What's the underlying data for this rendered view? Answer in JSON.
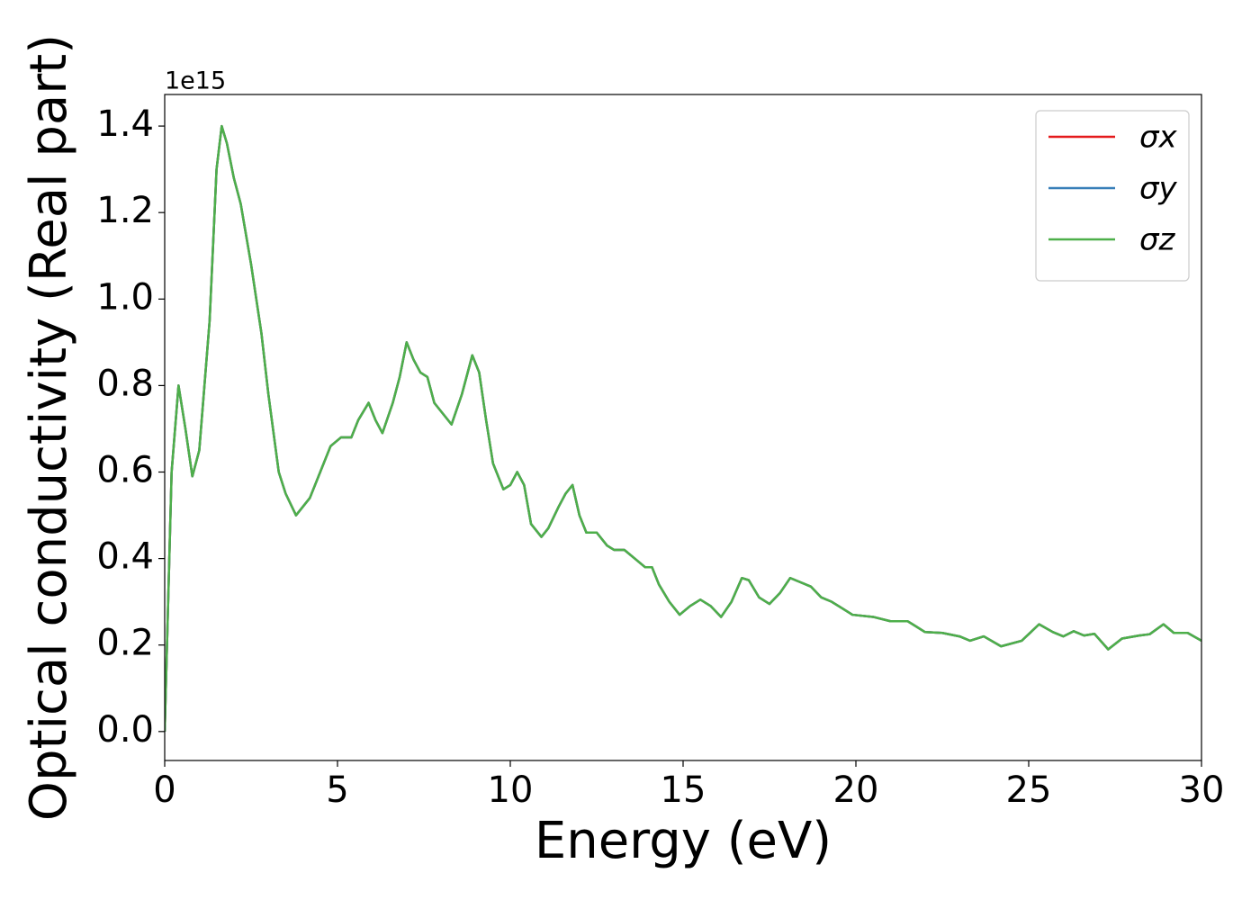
{
  "chart_data": {
    "type": "line",
    "xlabel": "Energy (eV)",
    "ylabel": "Optical conductivity (Real part)",
    "y_offset_label": "1e15",
    "x": [
      0,
      0.1,
      0.2,
      0.4,
      0.6,
      0.8,
      1.0,
      1.3,
      1.5,
      1.65,
      1.8,
      2.0,
      2.2,
      2.5,
      2.8,
      3.0,
      3.3,
      3.5,
      3.8,
      4.2,
      4.5,
      4.8,
      5.1,
      5.4,
      5.6,
      5.9,
      6.1,
      6.3,
      6.6,
      6.8,
      7.0,
      7.2,
      7.4,
      7.6,
      7.8,
      8.0,
      8.3,
      8.6,
      8.9,
      9.1,
      9.3,
      9.5,
      9.8,
      10.0,
      10.2,
      10.4,
      10.6,
      10.9,
      11.1,
      11.4,
      11.6,
      11.8,
      12.0,
      12.2,
      12.5,
      12.8,
      13.0,
      13.3,
      13.6,
      13.9,
      14.1,
      14.3,
      14.6,
      14.9,
      15.2,
      15.5,
      15.8,
      16.1,
      16.4,
      16.7,
      16.9,
      17.2,
      17.5,
      17.8,
      18.1,
      18.4,
      18.7,
      19.0,
      19.3,
      19.6,
      19.9,
      20.5,
      21.0,
      21.5,
      22.0,
      22.5,
      23.0,
      23.3,
      23.7,
      24.2,
      24.8,
      25.3,
      25.7,
      26.0,
      26.3,
      26.6,
      26.9,
      27.3,
      27.7,
      28.2,
      28.5,
      28.9,
      29.2,
      29.6,
      30.0
    ],
    "series": [
      {
        "name": "σx",
        "color": "#e41a1c",
        "values": [
          0,
          0.3,
          0.6,
          0.8,
          0.7,
          0.59,
          0.65,
          0.95,
          1.3,
          1.4,
          1.36,
          1.28,
          1.22,
          1.08,
          0.92,
          0.78,
          0.6,
          0.55,
          0.5,
          0.54,
          0.6,
          0.66,
          0.68,
          0.68,
          0.72,
          0.76,
          0.72,
          0.69,
          0.76,
          0.82,
          0.9,
          0.86,
          0.83,
          0.82,
          0.76,
          0.74,
          0.71,
          0.78,
          0.87,
          0.83,
          0.72,
          0.62,
          0.56,
          0.57,
          0.6,
          0.57,
          0.48,
          0.45,
          0.47,
          0.52,
          0.55,
          0.57,
          0.5,
          0.46,
          0.46,
          0.43,
          0.42,
          0.42,
          0.4,
          0.38,
          0.38,
          0.34,
          0.3,
          0.27,
          0.29,
          0.305,
          0.29,
          0.265,
          0.3,
          0.355,
          0.35,
          0.31,
          0.295,
          0.32,
          0.355,
          0.345,
          0.335,
          0.31,
          0.3,
          0.285,
          0.27,
          0.265,
          0.255,
          0.255,
          0.23,
          0.228,
          0.22,
          0.21,
          0.22,
          0.197,
          0.21,
          0.248,
          0.23,
          0.22,
          0.232,
          0.222,
          0.226,
          0.19,
          0.215,
          0.222,
          0.225,
          0.248,
          0.228,
          0.228,
          0.21
        ]
      },
      {
        "name": "σy",
        "color": "#377eb8",
        "values": [
          0,
          0.3,
          0.6,
          0.8,
          0.7,
          0.59,
          0.65,
          0.95,
          1.3,
          1.4,
          1.36,
          1.28,
          1.22,
          1.08,
          0.92,
          0.78,
          0.6,
          0.55,
          0.5,
          0.54,
          0.6,
          0.66,
          0.68,
          0.68,
          0.72,
          0.76,
          0.72,
          0.69,
          0.76,
          0.82,
          0.9,
          0.86,
          0.83,
          0.82,
          0.76,
          0.74,
          0.71,
          0.78,
          0.87,
          0.83,
          0.72,
          0.62,
          0.56,
          0.57,
          0.6,
          0.57,
          0.48,
          0.45,
          0.47,
          0.52,
          0.55,
          0.57,
          0.5,
          0.46,
          0.46,
          0.43,
          0.42,
          0.42,
          0.4,
          0.38,
          0.38,
          0.34,
          0.3,
          0.27,
          0.29,
          0.305,
          0.29,
          0.265,
          0.3,
          0.355,
          0.35,
          0.31,
          0.295,
          0.32,
          0.355,
          0.345,
          0.335,
          0.31,
          0.3,
          0.285,
          0.27,
          0.265,
          0.255,
          0.255,
          0.23,
          0.228,
          0.22,
          0.21,
          0.22,
          0.197,
          0.21,
          0.248,
          0.23,
          0.22,
          0.232,
          0.222,
          0.226,
          0.19,
          0.215,
          0.222,
          0.225,
          0.248,
          0.228,
          0.228,
          0.21
        ]
      },
      {
        "name": "σz",
        "color": "#4daf4a",
        "values": [
          0,
          0.3,
          0.6,
          0.8,
          0.7,
          0.59,
          0.65,
          0.95,
          1.3,
          1.4,
          1.36,
          1.28,
          1.22,
          1.08,
          0.92,
          0.78,
          0.6,
          0.55,
          0.5,
          0.54,
          0.6,
          0.66,
          0.68,
          0.68,
          0.72,
          0.76,
          0.72,
          0.69,
          0.76,
          0.82,
          0.9,
          0.86,
          0.83,
          0.82,
          0.76,
          0.74,
          0.71,
          0.78,
          0.87,
          0.83,
          0.72,
          0.62,
          0.56,
          0.57,
          0.6,
          0.57,
          0.48,
          0.45,
          0.47,
          0.52,
          0.55,
          0.57,
          0.5,
          0.46,
          0.46,
          0.43,
          0.42,
          0.42,
          0.4,
          0.38,
          0.38,
          0.34,
          0.3,
          0.27,
          0.29,
          0.305,
          0.29,
          0.265,
          0.3,
          0.355,
          0.35,
          0.31,
          0.295,
          0.32,
          0.355,
          0.345,
          0.335,
          0.31,
          0.3,
          0.285,
          0.27,
          0.265,
          0.255,
          0.255,
          0.23,
          0.228,
          0.22,
          0.21,
          0.22,
          0.197,
          0.21,
          0.248,
          0.23,
          0.22,
          0.232,
          0.222,
          0.226,
          0.19,
          0.215,
          0.222,
          0.225,
          0.248,
          0.228,
          0.228,
          0.21
        ]
      }
    ],
    "xlim": [
      0,
      30
    ],
    "xticks": [
      0,
      5,
      10,
      15,
      20,
      25,
      30
    ],
    "ylim": [
      -0.067,
      1.473
    ],
    "yticks": [
      {
        "value": 0,
        "label": "0.0"
      },
      0.2,
      0.4,
      0.6,
      0.8,
      {
        "value": 1,
        "label": "1.0"
      },
      1.2,
      1.4
    ],
    "grid": false,
    "legend": "upper right"
  }
}
